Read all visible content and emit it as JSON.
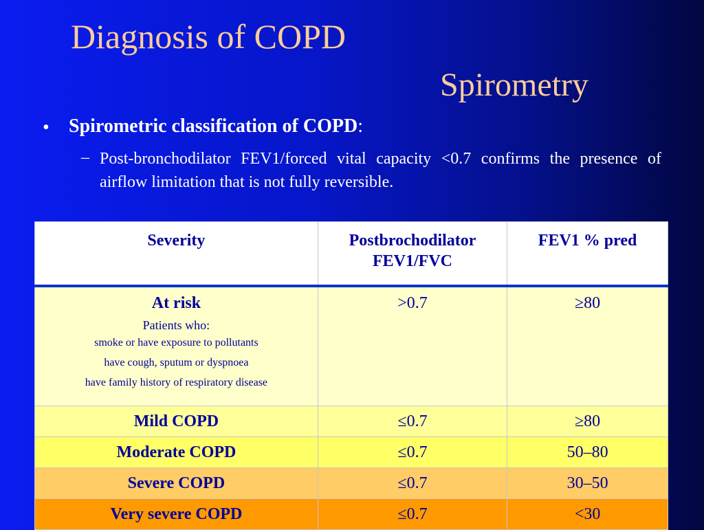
{
  "slide": {
    "title": "Diagnosis of COPD",
    "subtitle": "Spirometry",
    "bullet": "Spirometric classification of COPD",
    "bullet_suffix": ":",
    "sub_bullet": "Post-bronchodilator FEV1/forced vital capacity <0.7 confirms the presence of airflow limitation that is not fully reversible."
  },
  "table": {
    "header": [
      "Severity",
      "Postbrochodilator FEV1/FVC",
      "FEV1 % pred"
    ],
    "at_risk": {
      "label": "At risk",
      "intro": "Patients who:",
      "items": [
        "smoke or have exposure to pollutants",
        "have cough, sputum or dyspnoea",
        "have family history of respiratory disease"
      ],
      "ratio": ">0.7",
      "pred": "≥80"
    },
    "rows": [
      [
        "Mild COPD",
        "≤0.7",
        "≥80"
      ],
      [
        "Moderate COPD",
        "≤0.7",
        "50–80"
      ],
      [
        "Severe COPD",
        "≤0.7",
        "30–50"
      ],
      [
        "Very severe COPD",
        "≤0.7",
        "<30"
      ]
    ]
  }
}
